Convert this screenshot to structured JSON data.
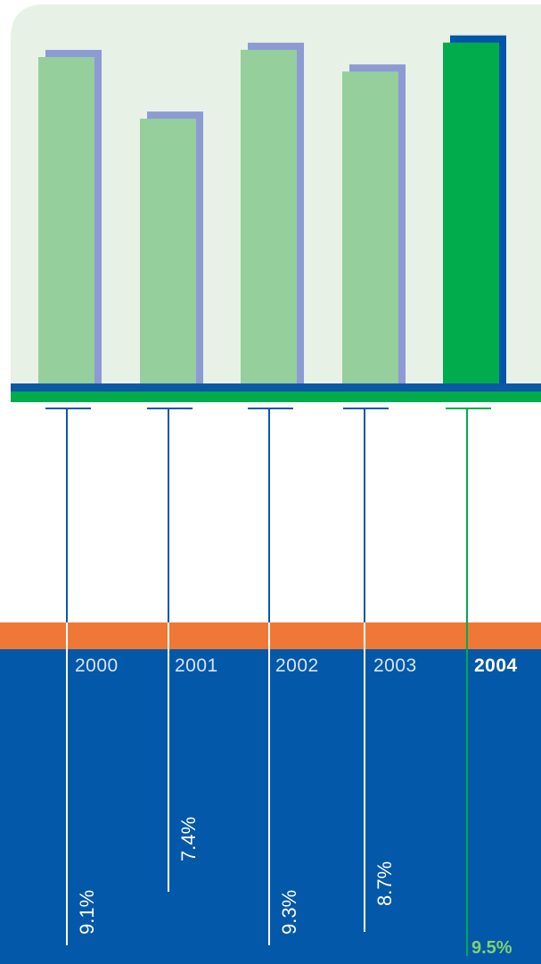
{
  "chart_data": {
    "type": "bar",
    "title": "",
    "xlabel": "",
    "ylabel": "",
    "categories": [
      "2000",
      "2001",
      "2002",
      "2003",
      "2004"
    ],
    "values": [
      9.1,
      7.4,
      9.3,
      8.7,
      9.5
    ],
    "value_labels": [
      "9.1%",
      "7.4%",
      "9.3%",
      "8.7%",
      "9.5%"
    ],
    "highlight_index": 4,
    "grid": false,
    "legend": "none"
  },
  "colors": {
    "panel_bg": "#e8f1e6",
    "bar": "#95cf9b",
    "bar_shadow": "#8c9bd4",
    "bar_highlight": "#00ac4c",
    "bar_highlight_shadow": "#0055a9",
    "baseline_blue": "#0c58a7",
    "baseline_green": "#00ac4c",
    "orange_band": "#ef7836",
    "blue_band": "#0458a9",
    "leader_line": "#0c58a7",
    "highlight_text": "#7fd36e"
  }
}
